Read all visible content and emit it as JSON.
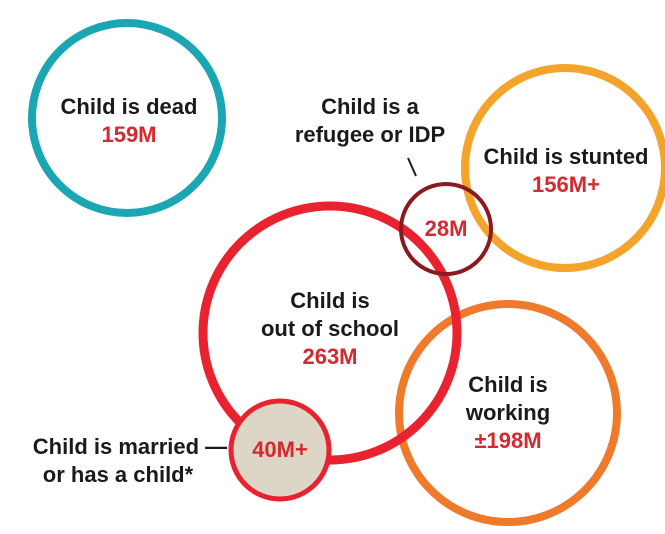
{
  "nodes": [
    {
      "label": [
        "Child is dead"
      ],
      "value": "159M"
    },
    {
      "label": [
        "Child is a",
        "refugee or IDP"
      ],
      "value": "28M"
    },
    {
      "label": [
        "Child is stunted"
      ],
      "value": "156M+"
    },
    {
      "label": [
        "Child is",
        "out of school"
      ],
      "value": "263M"
    },
    {
      "label": [
        "Child is",
        "working"
      ],
      "value": "±198M"
    },
    {
      "label": [
        "Child is married —",
        "or has a child*"
      ],
      "value": "40M+"
    }
  ]
}
